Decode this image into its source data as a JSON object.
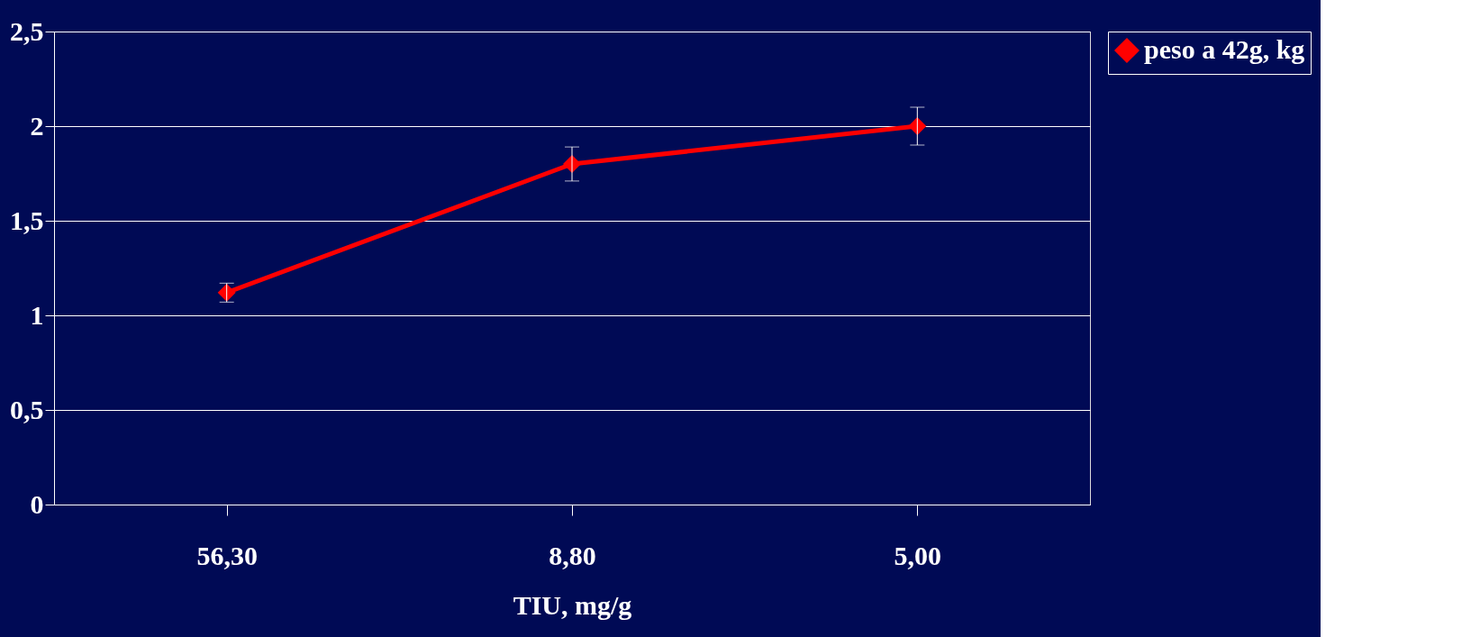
{
  "chart_data": {
    "type": "line",
    "xlabel": "TIU, mg/g",
    "categories": [
      "56,30",
      "8,80",
      "5,00"
    ],
    "series": [
      {
        "name": "peso a 42g, kg",
        "color": "#ff0000",
        "values": [
          1.12,
          1.8,
          2.0
        ],
        "errors": [
          0.05,
          0.09,
          0.1
        ]
      }
    ],
    "ylim": [
      0,
      2.5
    ],
    "yticks": [
      0,
      {
        "value": 0.5,
        "label": "0,5"
      },
      1,
      {
        "value": 1.5,
        "label": "1,5"
      },
      2,
      {
        "value": 2.5,
        "label": "2,5"
      }
    ],
    "grid": "y",
    "legend": "right",
    "marker": "diamond",
    "line_style": "solid"
  }
}
